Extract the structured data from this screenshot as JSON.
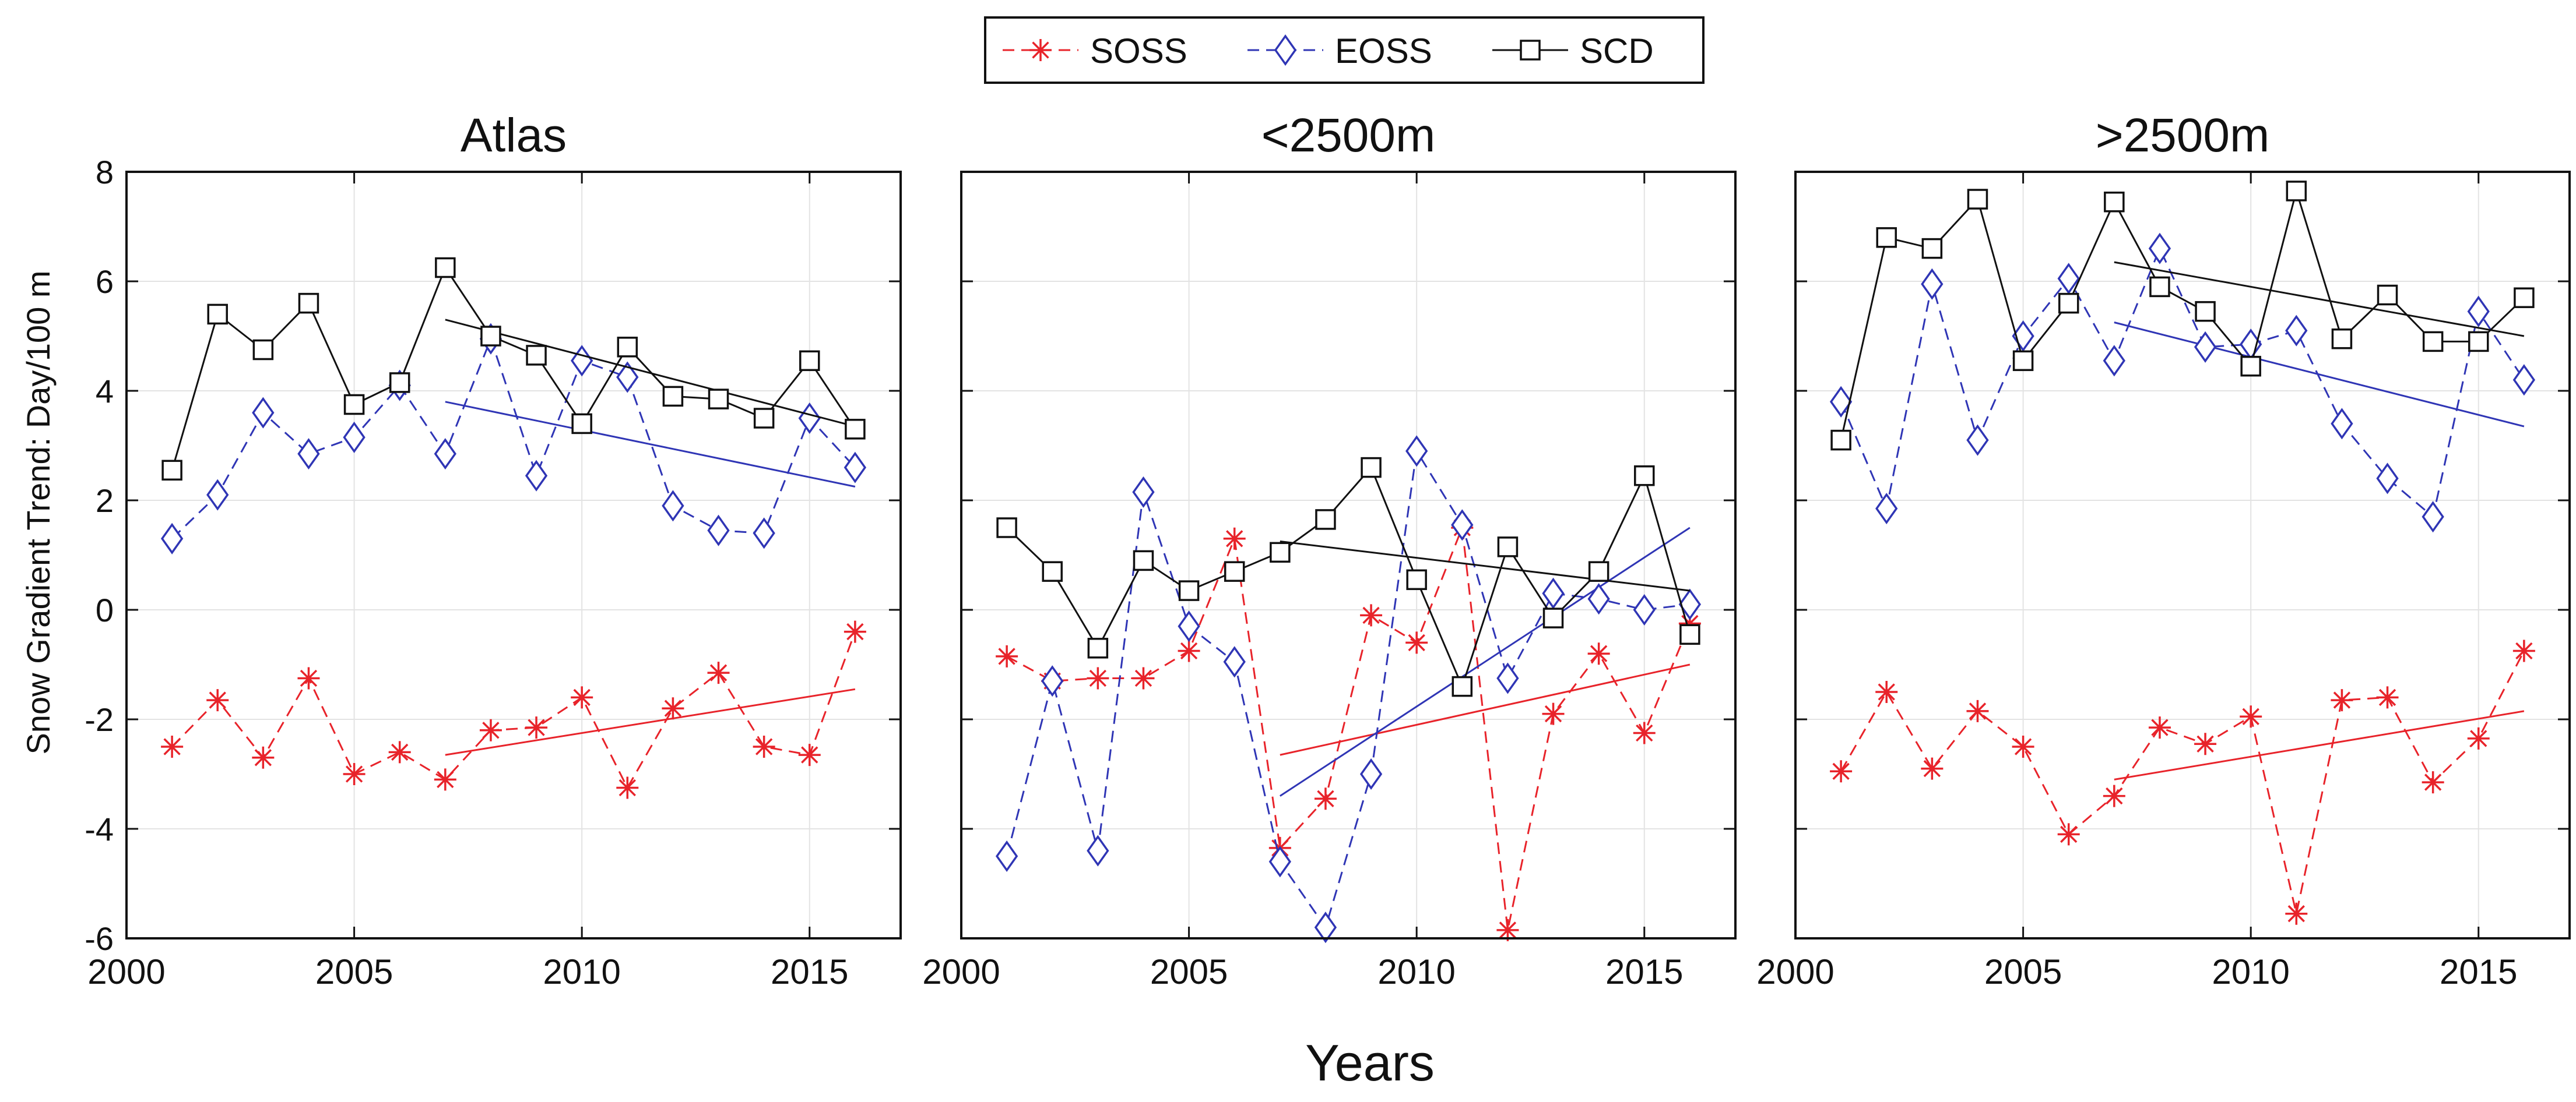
{
  "figure": {
    "xlabel": "Years",
    "ylabel": "Snow Gradient Trend: Day/100 m",
    "legend": [
      {
        "label": "SOSS",
        "color": "#e8232a",
        "marker": "asterisk",
        "line": "dashed"
      },
      {
        "label": "EOSS",
        "color": "#2f35b5",
        "marker": "diamond",
        "line": "dashed"
      },
      {
        "label": "SCD",
        "color": "#111111",
        "marker": "square",
        "line": "solid"
      }
    ]
  },
  "chart_data": [
    {
      "type": "line",
      "title": "Atlas",
      "xlim": [
        2000,
        2017
      ],
      "ylim": [
        -6,
        8
      ],
      "xticks": [
        2000,
        2005,
        2010,
        2015
      ],
      "yticks": [
        -6,
        -4,
        -2,
        0,
        2,
        4,
        6,
        8
      ],
      "grid": true,
      "x": [
        2001,
        2002,
        2003,
        2004,
        2005,
        2006,
        2007,
        2008,
        2009,
        2010,
        2011,
        2012,
        2013,
        2014,
        2015,
        2016
      ],
      "series": [
        {
          "name": "SOSS",
          "values": [
            -2.5,
            -1.65,
            -2.7,
            -1.25,
            -3.0,
            -2.6,
            -3.1,
            -2.2,
            -2.15,
            -1.6,
            -3.25,
            -1.8,
            -1.15,
            -2.5,
            -2.65,
            -0.4
          ],
          "trend": {
            "x": [
              2007,
              2016
            ],
            "y": [
              -2.65,
              -1.45
            ]
          }
        },
        {
          "name": "EOSS",
          "values": [
            1.3,
            2.1,
            3.6,
            2.85,
            3.15,
            4.1,
            2.85,
            4.95,
            2.45,
            4.55,
            4.25,
            1.9,
            1.45,
            1.4,
            3.5,
            2.6
          ],
          "trend": {
            "x": [
              2007,
              2016
            ],
            "y": [
              3.8,
              2.25
            ]
          }
        },
        {
          "name": "SCD",
          "values": [
            2.55,
            5.4,
            4.75,
            5.6,
            3.75,
            4.15,
            6.25,
            5.0,
            4.65,
            3.4,
            4.8,
            3.9,
            3.85,
            3.5,
            4.55,
            3.3
          ],
          "trend": {
            "x": [
              2007,
              2016
            ],
            "y": [
              5.3,
              3.35
            ]
          }
        }
      ]
    },
    {
      "type": "line",
      "title": "<2500m",
      "xlim": [
        2000,
        2017
      ],
      "ylim": [
        -6,
        8
      ],
      "xticks": [
        2000,
        2005,
        2010,
        2015
      ],
      "yticks": [
        -6,
        -4,
        -2,
        0,
        2,
        4,
        6,
        8
      ],
      "grid": true,
      "x": [
        2001,
        2002,
        2003,
        2004,
        2005,
        2006,
        2007,
        2008,
        2009,
        2010,
        2011,
        2012,
        2013,
        2014,
        2015,
        2016
      ],
      "series": [
        {
          "name": "SOSS",
          "values": [
            -0.85,
            -1.3,
            -1.25,
            -1.25,
            -0.75,
            1.3,
            -4.35,
            -3.45,
            -0.1,
            -0.6,
            1.5,
            -5.85,
            -1.9,
            -0.8,
            -2.25,
            -0.25
          ],
          "trend": {
            "x": [
              2007,
              2016
            ],
            "y": [
              -2.65,
              -1.0
            ]
          }
        },
        {
          "name": "EOSS",
          "values": [
            -4.5,
            -1.3,
            -4.4,
            2.15,
            -0.3,
            -0.95,
            -4.6,
            -5.8,
            -3.0,
            2.9,
            1.55,
            -1.25,
            0.3,
            0.2,
            0.0,
            0.1
          ],
          "trend": {
            "x": [
              2007,
              2016
            ],
            "y": [
              -3.4,
              1.5
            ]
          }
        },
        {
          "name": "SCD",
          "values": [
            1.5,
            0.7,
            -0.7,
            0.9,
            0.35,
            0.7,
            1.05,
            1.65,
            2.6,
            0.55,
            -1.4,
            1.15,
            -0.15,
            0.7,
            2.45,
            -0.45
          ],
          "trend": {
            "x": [
              2007,
              2016
            ],
            "y": [
              1.25,
              0.35
            ]
          }
        }
      ]
    },
    {
      "type": "line",
      "title": ">2500m",
      "xlim": [
        2000,
        2017
      ],
      "ylim": [
        -6,
        8
      ],
      "xticks": [
        2000,
        2005,
        2010,
        2015
      ],
      "yticks": [
        -6,
        -4,
        -2,
        0,
        2,
        4,
        6,
        8
      ],
      "grid": true,
      "x": [
        2001,
        2002,
        2003,
        2004,
        2005,
        2006,
        2007,
        2008,
        2009,
        2010,
        2011,
        2012,
        2013,
        2014,
        2015,
        2016
      ],
      "series": [
        {
          "name": "SOSS",
          "values": [
            -2.95,
            -1.5,
            -2.9,
            -1.85,
            -2.5,
            -4.1,
            -3.4,
            -2.15,
            -2.45,
            -1.95,
            -5.55,
            -1.65,
            -1.6,
            -3.15,
            -2.35,
            -0.75
          ],
          "trend": {
            "x": [
              2007,
              2016
            ],
            "y": [
              -3.1,
              -1.85
            ]
          }
        },
        {
          "name": "EOSS",
          "values": [
            3.8,
            1.85,
            5.95,
            3.1,
            5.0,
            6.05,
            4.55,
            6.6,
            4.8,
            4.85,
            5.1,
            3.4,
            2.4,
            1.7,
            5.45,
            4.2
          ],
          "trend": {
            "x": [
              2007,
              2016
            ],
            "y": [
              5.25,
              3.35
            ]
          }
        },
        {
          "name": "SCD",
          "values": [
            3.1,
            6.8,
            6.6,
            7.5,
            4.55,
            5.6,
            7.45,
            5.9,
            5.45,
            4.45,
            7.65,
            4.95,
            5.75,
            4.9,
            4.9,
            5.7
          ],
          "trend": {
            "x": [
              2007,
              2016
            ],
            "y": [
              6.35,
              5.0
            ]
          }
        }
      ]
    }
  ]
}
